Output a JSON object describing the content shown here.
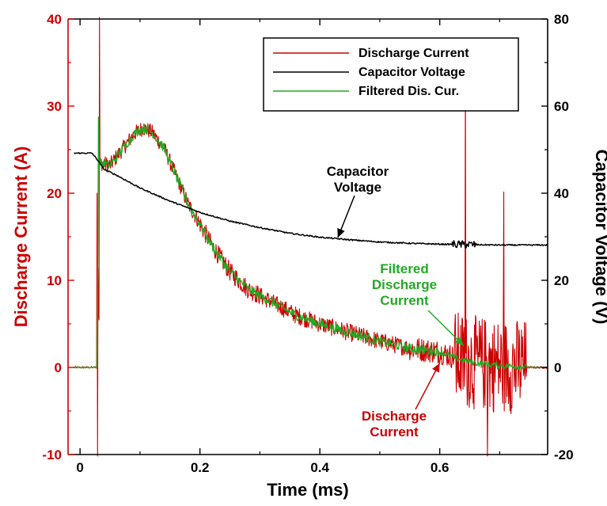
{
  "chart_data": {
    "type": "line",
    "xlabel": "Time (ms)",
    "ylabel_left": "Discharge Current (A)",
    "ylabel_right": "Capacitor Voltage (V)",
    "xlim": [
      -0.02,
      0.78
    ],
    "ylim_left": [
      -10,
      40
    ],
    "ylim_right": [
      -20,
      80
    ],
    "x_ticks": [
      "0",
      "0.2",
      "0.4",
      "0.6"
    ],
    "y_left_ticks": [
      "-10",
      "0",
      "10",
      "20",
      "30",
      "40"
    ],
    "y_right_ticks": [
      "-20",
      "0",
      "20",
      "40",
      "60",
      "80"
    ],
    "grid": false,
    "legend_position": "top-right",
    "colors": {
      "discharge": "#cc0000",
      "voltage": "#000000",
      "filtered": "#22aa22",
      "left_axis": "#cc0000",
      "right_axis": "#000000"
    },
    "series": [
      {
        "name": "Discharge Current",
        "axis": "left",
        "x": [
          -0.01,
          0.02,
          0.029,
          0.031,
          0.035,
          0.05,
          0.07,
          0.09,
          0.105,
          0.12,
          0.14,
          0.16,
          0.18,
          0.2,
          0.22,
          0.25,
          0.28,
          0.32,
          0.36,
          0.4,
          0.45,
          0.5,
          0.55,
          0.6,
          0.63,
          0.66,
          0.7,
          0.74,
          0.745,
          0.78
        ],
        "y": [
          0,
          0,
          0,
          23,
          23.5,
          23.2,
          25,
          26.8,
          27.5,
          27,
          25.2,
          22,
          18.8,
          16.5,
          14,
          11,
          9,
          7.5,
          6,
          5,
          4,
          3,
          2.2,
          1.8,
          1,
          0.5,
          0.2,
          0.1,
          0,
          0
        ]
      },
      {
        "name": "Capacitor Voltage",
        "axis": "right",
        "x": [
          -0.01,
          0.02,
          0.03,
          0.04,
          0.06,
          0.1,
          0.15,
          0.2,
          0.25,
          0.3,
          0.35,
          0.4,
          0.45,
          0.5,
          0.55,
          0.6,
          0.65,
          0.7,
          0.75,
          0.78
        ],
        "y": [
          49.2,
          49.2,
          47.5,
          45.5,
          44.2,
          41.2,
          38.2,
          35.6,
          33.6,
          32.1,
          30.8,
          29.9,
          29.3,
          28.8,
          28.5,
          28.3,
          28.2,
          28.1,
          28.1,
          28.1
        ]
      },
      {
        "name": "Filtered Dis. Cur.",
        "axis": "left",
        "x": [
          -0.01,
          0.02,
          0.029,
          0.031,
          0.035,
          0.05,
          0.07,
          0.09,
          0.105,
          0.12,
          0.14,
          0.16,
          0.18,
          0.2,
          0.22,
          0.25,
          0.28,
          0.32,
          0.36,
          0.4,
          0.45,
          0.5,
          0.55,
          0.6,
          0.63,
          0.66,
          0.7,
          0.74,
          0.745,
          0.78
        ],
        "y": [
          0,
          0,
          0,
          23,
          23.5,
          23.2,
          25,
          26.8,
          27.5,
          27,
          25.2,
          22,
          18.8,
          16.5,
          14,
          11,
          9,
          7.5,
          6,
          5,
          4,
          3,
          2.2,
          1.8,
          1,
          0.5,
          0.2,
          0.1,
          0,
          0
        ]
      }
    ],
    "annotations": [
      {
        "lines": [
          "Capacitor",
          "Voltage"
        ],
        "color": "#000000",
        "arrow_to": {
          "x": 0.43,
          "y": 29.8,
          "axis": "right"
        }
      },
      {
        "lines": [
          "Filtered",
          "Discharge",
          "Current"
        ],
        "color": "#22aa22",
        "arrow_to": {
          "x": 0.64,
          "y": 2.5,
          "axis": "left"
        }
      },
      {
        "lines": [
          "Discharge",
          "Current"
        ],
        "color": "#cc0000",
        "arrow_to": {
          "x": 0.6,
          "y": 0.5,
          "axis": "left"
        }
      }
    ]
  }
}
